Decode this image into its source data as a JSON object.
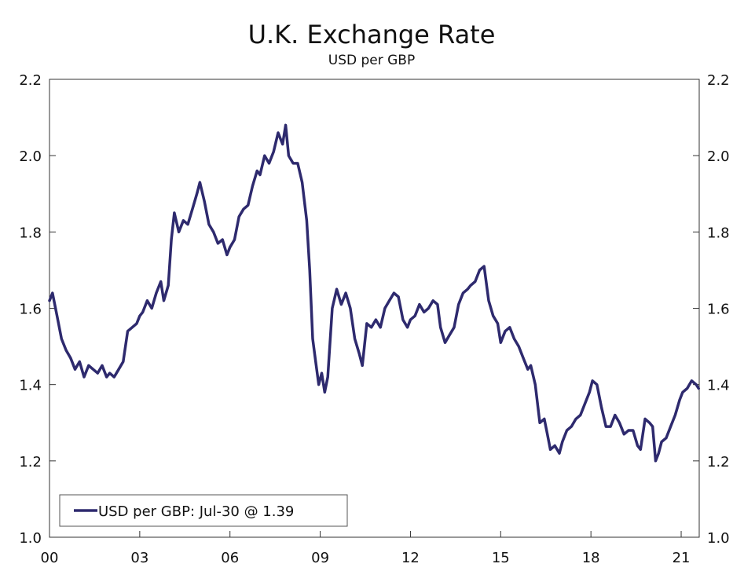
{
  "chart_data": {
    "type": "line",
    "title": "U.K. Exchange Rate",
    "subtitle": "USD per GBP",
    "xlabel": "",
    "ylabel": "",
    "x_tick_labels": [
      "00",
      "03",
      "06",
      "09",
      "12",
      "15",
      "18",
      "21"
    ],
    "x_tick_years": [
      2000,
      2003,
      2006,
      2009,
      2012,
      2015,
      2018,
      2021
    ],
    "xlim": [
      2000.0,
      2021.6
    ],
    "y_tick_labels": [
      "1.0",
      "1.2",
      "1.4",
      "1.6",
      "1.8",
      "2.0",
      "2.2"
    ],
    "y_tick_values": [
      1.0,
      1.2,
      1.4,
      1.6,
      1.8,
      2.0,
      2.2
    ],
    "ylim": [
      1.0,
      2.2
    ],
    "grid": false,
    "legend_position": "bottom-left",
    "series": [
      {
        "name": "USD per GBP: Jul-30 @ 1.39",
        "color": "#2e2a6e",
        "x": [
          2000.0,
          2000.1,
          2000.25,
          2000.4,
          2000.55,
          2000.7,
          2000.85,
          2001.0,
          2001.15,
          2001.3,
          2001.45,
          2001.6,
          2001.75,
          2001.9,
          2002.0,
          2002.15,
          2002.3,
          2002.45,
          2002.6,
          2002.75,
          2002.9,
          2003.0,
          2003.1,
          2003.25,
          2003.4,
          2003.55,
          2003.7,
          2003.8,
          2003.95,
          2004.05,
          2004.15,
          2004.3,
          2004.45,
          2004.6,
          2004.75,
          2004.9,
          2005.0,
          2005.15,
          2005.3,
          2005.45,
          2005.6,
          2005.75,
          2005.9,
          2006.0,
          2006.15,
          2006.3,
          2006.45,
          2006.6,
          2006.75,
          2006.9,
          2007.0,
          2007.15,
          2007.3,
          2007.45,
          2007.6,
          2007.75,
          2007.85,
          2007.95,
          2008.1,
          2008.25,
          2008.4,
          2008.55,
          2008.65,
          2008.75,
          2008.85,
          2008.95,
          2009.05,
          2009.15,
          2009.25,
          2009.4,
          2009.55,
          2009.7,
          2009.85,
          2010.0,
          2010.15,
          2010.3,
          2010.4,
          2010.55,
          2010.7,
          2010.85,
          2011.0,
          2011.15,
          2011.3,
          2011.45,
          2011.6,
          2011.75,
          2011.9,
          2012.0,
          2012.15,
          2012.3,
          2012.45,
          2012.6,
          2012.75,
          2012.9,
          2013.0,
          2013.15,
          2013.3,
          2013.45,
          2013.6,
          2013.75,
          2013.9,
          2014.0,
          2014.15,
          2014.3,
          2014.45,
          2014.6,
          2014.75,
          2014.9,
          2015.0,
          2015.15,
          2015.3,
          2015.45,
          2015.6,
          2015.75,
          2015.9,
          2016.0,
          2016.15,
          2016.3,
          2016.45,
          2016.55,
          2016.65,
          2016.8,
          2016.95,
          2017.05,
          2017.2,
          2017.35,
          2017.5,
          2017.65,
          2017.8,
          2017.95,
          2018.05,
          2018.2,
          2018.35,
          2018.5,
          2018.65,
          2018.8,
          2018.95,
          2019.1,
          2019.25,
          2019.4,
          2019.55,
          2019.65,
          2019.8,
          2019.95,
          2020.05,
          2020.15,
          2020.25,
          2020.35,
          2020.5,
          2020.65,
          2020.8,
          2020.95,
          2021.05,
          2021.2,
          2021.35,
          2021.5,
          2021.58
        ],
        "values": [
          1.62,
          1.64,
          1.58,
          1.52,
          1.49,
          1.47,
          1.44,
          1.46,
          1.42,
          1.45,
          1.44,
          1.43,
          1.45,
          1.42,
          1.43,
          1.42,
          1.44,
          1.46,
          1.54,
          1.55,
          1.56,
          1.58,
          1.59,
          1.62,
          1.6,
          1.64,
          1.67,
          1.62,
          1.66,
          1.78,
          1.85,
          1.8,
          1.83,
          1.82,
          1.86,
          1.9,
          1.93,
          1.88,
          1.82,
          1.8,
          1.77,
          1.78,
          1.74,
          1.76,
          1.78,
          1.84,
          1.86,
          1.87,
          1.92,
          1.96,
          1.95,
          2.0,
          1.98,
          2.01,
          2.06,
          2.03,
          2.08,
          2.0,
          1.98,
          1.98,
          1.93,
          1.83,
          1.7,
          1.52,
          1.46,
          1.4,
          1.43,
          1.38,
          1.42,
          1.6,
          1.65,
          1.61,
          1.64,
          1.6,
          1.52,
          1.48,
          1.45,
          1.56,
          1.55,
          1.57,
          1.55,
          1.6,
          1.62,
          1.64,
          1.63,
          1.57,
          1.55,
          1.57,
          1.58,
          1.61,
          1.59,
          1.6,
          1.62,
          1.61,
          1.55,
          1.51,
          1.53,
          1.55,
          1.61,
          1.64,
          1.65,
          1.66,
          1.67,
          1.7,
          1.71,
          1.62,
          1.58,
          1.56,
          1.51,
          1.54,
          1.55,
          1.52,
          1.5,
          1.47,
          1.44,
          1.45,
          1.4,
          1.3,
          1.31,
          1.27,
          1.23,
          1.24,
          1.22,
          1.25,
          1.28,
          1.29,
          1.31,
          1.32,
          1.35,
          1.38,
          1.41,
          1.4,
          1.34,
          1.29,
          1.29,
          1.32,
          1.3,
          1.27,
          1.28,
          1.28,
          1.24,
          1.23,
          1.31,
          1.3,
          1.29,
          1.2,
          1.22,
          1.25,
          1.26,
          1.29,
          1.32,
          1.36,
          1.38,
          1.39,
          1.41,
          1.4,
          1.39
        ]
      }
    ]
  }
}
